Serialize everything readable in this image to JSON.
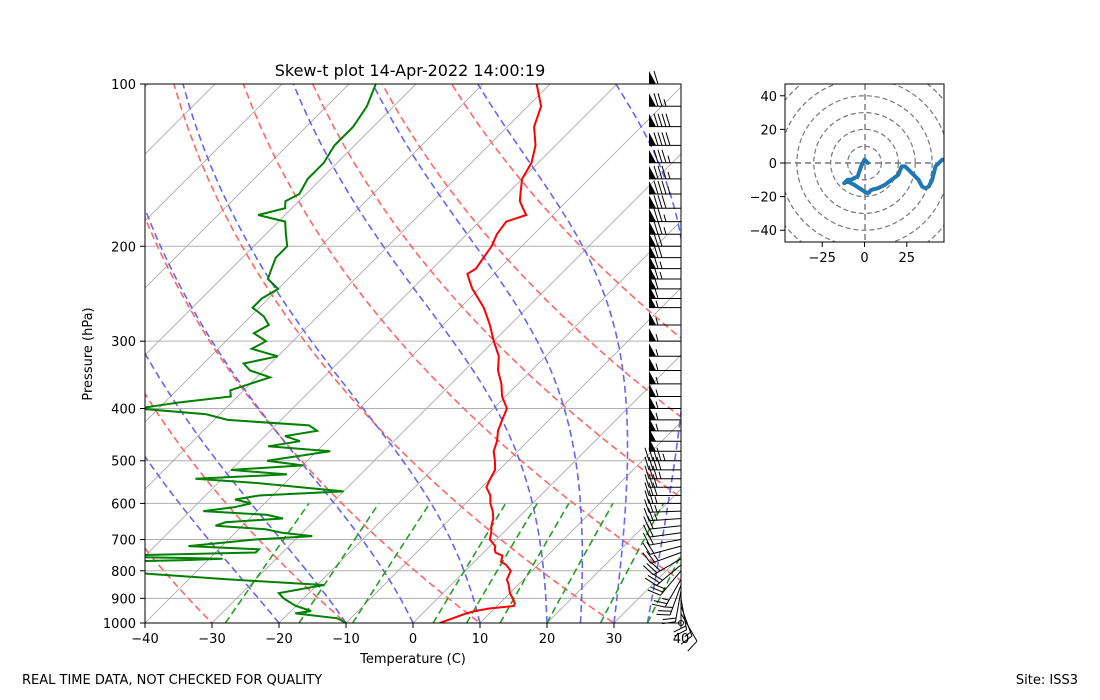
{
  "footer": {
    "left_note": "REAL TIME DATA, NOT CHECKED FOR QUALITY",
    "site": "Site: ISS3"
  },
  "chart_data": [
    {
      "type": "line",
      "name": "skew-t",
      "title": "Skew-t plot 14-Apr-2022 14:00:19",
      "xlabel": "Temperature (C)",
      "ylabel": "Pressure (hPa)",
      "xlim": [
        -40,
        40
      ],
      "ylim": [
        1000,
        100
      ],
      "y_scale": "log",
      "skew_deg": 45,
      "x_ticks": [
        -40,
        -30,
        -20,
        -10,
        0,
        10,
        20,
        30,
        40
      ],
      "y_ticks": [
        1000,
        900,
        800,
        700,
        600,
        500,
        400,
        300,
        200,
        100
      ],
      "grid": true,
      "colors": {
        "temperature": "#ff0000",
        "dewpoint": "#008000",
        "dry_adiabat": "#ff6666",
        "moist_adiabat": "#6666ee",
        "mixing_ratio": "#22a022",
        "isotherm": "#aaaaaa"
      },
      "dry_adiabats_thetaC": [
        -30,
        -10,
        10,
        30,
        50,
        70,
        90,
        110
      ],
      "moist_adiabats_startC": [
        -20,
        -10,
        0,
        10,
        20,
        25,
        30,
        35
      ],
      "mixing_ratio_lines_startC": [
        -28,
        -17,
        -9,
        3,
        8,
        13,
        20,
        28,
        35,
        40
      ],
      "isotherms_C": [
        -150,
        -140,
        -130,
        -120,
        -110,
        -100,
        -90,
        -80,
        -70,
        -60,
        -50,
        -40,
        -30,
        -20,
        -10,
        0,
        10,
        20,
        30,
        40
      ],
      "temperature": {
        "p": [
          1000,
          960,
          950,
          940,
          930,
          920,
          900,
          880,
          850,
          830,
          800,
          780,
          770,
          750,
          740,
          730,
          720,
          700,
          680,
          660,
          640,
          620,
          600,
          580,
          560,
          540,
          520,
          500,
          480,
          460,
          440,
          420,
          400,
          380,
          360,
          340,
          320,
          300,
          280,
          260,
          240,
          230,
          225,
          220,
          210,
          200,
          190,
          180,
          175,
          170,
          165,
          160,
          150,
          140,
          130,
          120,
          110,
          100
        ],
        "t": [
          4,
          6.5,
          7.5,
          9.2,
          12.5,
          12.3,
          11.2,
          10,
          8.6,
          7.5,
          6.8,
          5.2,
          4,
          3.3,
          1.8,
          1.2,
          0.8,
          -1,
          -1.8,
          -2.8,
          -3.6,
          -4.8,
          -6.3,
          -7.5,
          -9.3,
          -10,
          -10.6,
          -12,
          -13.6,
          -14.6,
          -16,
          -17,
          -18,
          -20.5,
          -22.5,
          -25,
          -27,
          -30,
          -33,
          -36.5,
          -41,
          -43,
          -44,
          -43.5,
          -44,
          -44.5,
          -45.5,
          -46,
          -44,
          -45.5,
          -47,
          -48,
          -50,
          -51,
          -53,
          -56,
          -58,
          -62
        ]
      },
      "dewpoint": {
        "p": [
          1000,
          980,
          960,
          950,
          930,
          920,
          900,
          880,
          850,
          830,
          810,
          800,
          790,
          785,
          780,
          775,
          770,
          765,
          760,
          755,
          750,
          740,
          730,
          720,
          700,
          690,
          680,
          670,
          660,
          650,
          640,
          630,
          620,
          610,
          600,
          590,
          580,
          570,
          560,
          550,
          540,
          530,
          520,
          510,
          500,
          490,
          480,
          470,
          460,
          450,
          440,
          430,
          420,
          410,
          400,
          390,
          380,
          370,
          360,
          350,
          340,
          330,
          320,
          310,
          300,
          290,
          280,
          270,
          260,
          250,
          240,
          230,
          220,
          210,
          200,
          190,
          180,
          175,
          170,
          165,
          160,
          150,
          140,
          130,
          120,
          110,
          100
        ],
        "td": [
          -10,
          -12,
          -19,
          -17,
          -20,
          -21,
          -23,
          -24.5,
          -19,
          -34,
          -47,
          -50,
          -52,
          -62,
          -64,
          -66,
          -55,
          -44,
          -38,
          -50,
          -55,
          -34,
          -34,
          -45,
          -36,
          -28,
          -33,
          -36,
          -44,
          -43,
          -35,
          -38,
          -48,
          -44,
          -42,
          -45,
          -42,
          -30,
          -37,
          -44,
          -54,
          -41,
          -50,
          -40,
          -46,
          -42,
          -38,
          -48,
          -44,
          -47,
          -43,
          -45,
          -58,
          -62,
          -73,
          -68,
          -61,
          -62,
          -60,
          -58,
          -62,
          -64,
          -60,
          -65,
          -64,
          -67,
          -66,
          -68,
          -71,
          -71,
          -70,
          -73,
          -74,
          -75,
          -75,
          -77,
          -79,
          -84,
          -81,
          -82,
          -81,
          -82,
          -82,
          -83,
          -83,
          -84,
          -86
        ]
      },
      "wind_barbs": {
        "p": [
          1000,
          960,
          930,
          900,
          870,
          850,
          830,
          800,
          780,
          760,
          740,
          720,
          700,
          680,
          660,
          640,
          620,
          600,
          580,
          560,
          540,
          520,
          500,
          480,
          460,
          440,
          420,
          400,
          380,
          360,
          340,
          320,
          300,
          280,
          260,
          250,
          240,
          230,
          220,
          210,
          200,
          190,
          180,
          170,
          160,
          150,
          140,
          130,
          120,
          110,
          100
        ],
        "speed_kt": [
          0,
          10,
          15,
          20,
          22,
          25,
          25,
          28,
          30,
          30,
          25,
          20,
          20,
          20,
          22,
          25,
          25,
          25,
          30,
          30,
          35,
          40,
          45,
          50,
          50,
          55,
          55,
          55,
          55,
          55,
          55,
          55,
          55,
          55,
          55,
          60,
          60,
          65,
          65,
          70,
          70,
          75,
          75,
          80,
          85,
          85,
          85,
          90,
          90,
          75,
          60
        ],
        "dir_deg": [
          0,
          150,
          160,
          170,
          190,
          200,
          210,
          220,
          230,
          240,
          250,
          255,
          260,
          262,
          264,
          266,
          268,
          270,
          270,
          270,
          270,
          270,
          270,
          270,
          270,
          270,
          270,
          270,
          270,
          270,
          270,
          270,
          270,
          270,
          270,
          270,
          270,
          270,
          270,
          270,
          270,
          270,
          270,
          270,
          270,
          270,
          270,
          270,
          270,
          270,
          270
        ]
      }
    },
    {
      "type": "line",
      "name": "hodograph",
      "xlim": [
        -47,
        47
      ],
      "ylim": [
        -47,
        47
      ],
      "x_ticks": [
        -25,
        0,
        25
      ],
      "y_ticks": [
        -40,
        -20,
        0,
        20,
        40
      ],
      "ring_radii": [
        10,
        20,
        30,
        40,
        50,
        60,
        70
      ],
      "color": "#1f77b4",
      "u": [
        2,
        0,
        -2,
        -4,
        -8,
        -10,
        -12,
        -10,
        -6,
        0,
        2,
        4,
        8,
        12,
        16,
        20,
        22,
        24,
        26,
        28,
        30,
        32,
        34,
        36,
        38,
        40,
        42,
        44,
        46,
        48
      ],
      "v": [
        0,
        2,
        -2,
        -8,
        -10,
        -10,
        -12,
        -11,
        -13,
        -17,
        -18,
        -16,
        -15,
        -13,
        -10,
        -7,
        -2,
        -2,
        -4,
        -6,
        -8,
        -10,
        -14,
        -15,
        -14,
        -10,
        -2,
        0,
        2,
        2
      ]
    }
  ]
}
